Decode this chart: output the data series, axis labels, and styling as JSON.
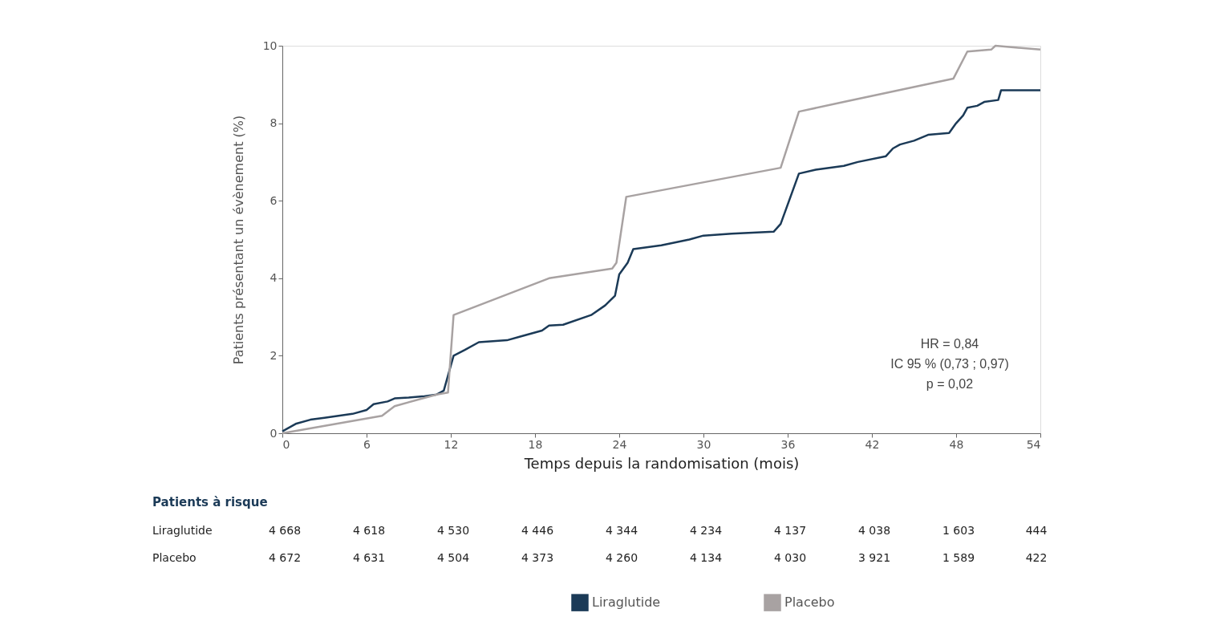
{
  "chart_data": {
    "type": "line",
    "xlabel": "Temps depuis la randomisation (mois)",
    "ylabel": "Patients présentant un évènement (%)",
    "xlim": [
      0,
      54
    ],
    "xticks": [
      0,
      6,
      12,
      18,
      24,
      30,
      36,
      42,
      48,
      54
    ],
    "ylim": [
      0,
      10
    ],
    "yticks": [
      0,
      2,
      4,
      6,
      8,
      10
    ],
    "grid": false,
    "legend": "bottom",
    "marker": "none",
    "line_style": "solid",
    "series": [
      {
        "name": "Liraglutide",
        "color": "#1b3a57",
        "x": [
          0,
          1,
          2,
          3,
          4,
          5,
          6,
          6.5,
          7.5,
          8,
          9,
          10,
          11,
          11.5,
          12.2,
          13,
          14,
          16,
          17,
          18.5,
          19,
          20,
          22,
          23,
          23.7,
          24,
          24.6,
          25,
          27,
          29,
          30,
          32,
          35,
          35.5,
          36.8,
          38,
          40,
          41,
          43,
          43.5,
          44,
          45,
          46,
          47.5,
          48,
          48.5,
          48.8,
          49.5,
          50,
          51,
          51.2,
          54
        ],
        "values": [
          0.05,
          0.25,
          0.35,
          0.4,
          0.45,
          0.5,
          0.6,
          0.75,
          0.82,
          0.9,
          0.92,
          0.95,
          1.0,
          1.1,
          2.0,
          2.15,
          2.35,
          2.4,
          2.5,
          2.65,
          2.78,
          2.8,
          3.05,
          3.3,
          3.55,
          4.1,
          4.4,
          4.75,
          4.85,
          5.0,
          5.1,
          5.15,
          5.2,
          5.4,
          6.7,
          6.8,
          6.9,
          7.0,
          7.15,
          7.35,
          7.45,
          7.55,
          7.7,
          7.75,
          8.0,
          8.2,
          8.4,
          8.45,
          8.55,
          8.6,
          8.85,
          8.85
        ]
      },
      {
        "name": "Placebo",
        "color": "#a8a2a2",
        "x": [
          0,
          7.1,
          8,
          11,
          11.8,
          12.2,
          19,
          23.5,
          23.8,
          24.5,
          35.5,
          36.8,
          40,
          47.8,
          48.8,
          50.5,
          50.8,
          54
        ],
        "values": [
          0,
          0.45,
          0.7,
          1.0,
          1.05,
          3.05,
          4.0,
          4.25,
          4.4,
          6.1,
          6.85,
          8.3,
          8.55,
          9.15,
          9.85,
          9.9,
          10.0,
          9.9
        ]
      }
    ],
    "annotations": [
      "Patients à risque",
      "Liraglutide",
      "4 668",
      "4 618",
      "4 530",
      "4 446",
      "4 344",
      "4 234",
      "4 137",
      "4 038",
      "1 603",
      "444",
      "Placebo",
      "4 672",
      "4 631",
      "4 504",
      "4 373",
      "4 260",
      "4 134",
      "4 030",
      "3 921",
      "1 589",
      "422",
      "HR = 0,84",
      "IC 95 % (0,73 ; 0,97)",
      "p = 0,02"
    ]
  }
}
